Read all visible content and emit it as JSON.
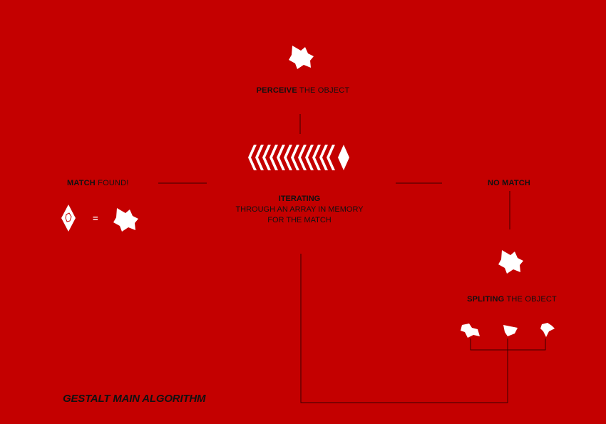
{
  "steps": {
    "perceive": {
      "bold": "PERCEIVE",
      "rest": " THE OBJECT"
    },
    "iterating": {
      "title": "ITERATING",
      "line1": "THROUGH AN ARRAY IN MEMORY",
      "line2": "FOR THE MATCH"
    },
    "match_found": {
      "bold": "MATCH",
      "rest": " FOUND!"
    },
    "no_match": {
      "bold": "NO MATCH",
      "rest": ""
    },
    "spliting": {
      "bold": "SPLITING",
      "rest": " THE OBJECT"
    }
  },
  "match_symbol": "=",
  "footer_title": "GESTALT MAIN ALGORITHM",
  "colors": {
    "background": "#c40000",
    "shape": "#ffffff",
    "line": "#3a0000",
    "text": "#111111"
  },
  "icons": [
    "blob-icon",
    "diamond-icon",
    "fragment-icon"
  ]
}
